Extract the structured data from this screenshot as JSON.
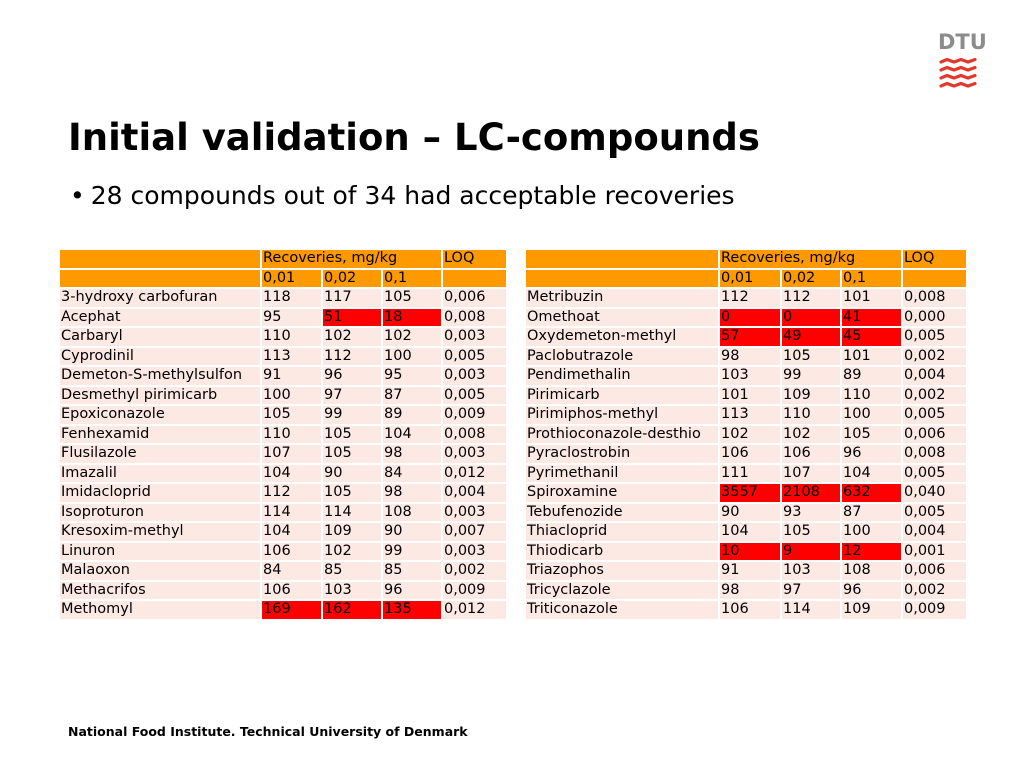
{
  "logo": {
    "text": "DTU",
    "color": "#8c8c8c",
    "mark_color": "#e03a2f"
  },
  "title": "Initial validation – LC-compounds",
  "bullet": {
    "symbol": "•",
    "text": "28 compounds out of 34 had acceptable recoveries"
  },
  "colors": {
    "header": "#ff9900",
    "row": "#fde9e4",
    "highlight": "#ff0000"
  },
  "tables": [
    {
      "header1": [
        "",
        "Recoveries, mg/kg",
        "LOQ"
      ],
      "header2": [
        "",
        "0,01",
        "0,02",
        "0,1",
        ""
      ],
      "rows": [
        {
          "name": "3-hydroxy carbofuran",
          "r1": "118",
          "r2": "117",
          "r3": "105",
          "loq": "0,006",
          "highlight": []
        },
        {
          "name": "Acephat",
          "r1": "95",
          "r2": "51",
          "r3": "18",
          "loq": "0,008",
          "highlight": [
            2,
            3
          ]
        },
        {
          "name": "Carbaryl",
          "r1": "110",
          "r2": "102",
          "r3": "102",
          "loq": "0,003",
          "highlight": []
        },
        {
          "name": "Cyprodinil",
          "r1": "113",
          "r2": "112",
          "r3": "100",
          "loq": "0,005",
          "highlight": []
        },
        {
          "name": "Demeton-S-methylsulfon",
          "r1": "91",
          "r2": "96",
          "r3": "95",
          "loq": "0,003",
          "highlight": []
        },
        {
          "name": "Desmethyl pirimicarb",
          "r1": "100",
          "r2": "97",
          "r3": "87",
          "loq": "0,005",
          "highlight": []
        },
        {
          "name": "Epoxiconazole",
          "r1": "105",
          "r2": "99",
          "r3": "89",
          "loq": "0,009",
          "highlight": []
        },
        {
          "name": "Fenhexamid",
          "r1": "110",
          "r2": "105",
          "r3": "104",
          "loq": "0,008",
          "highlight": []
        },
        {
          "name": "Flusilazole",
          "r1": "107",
          "r2": "105",
          "r3": "98",
          "loq": "0,003",
          "highlight": []
        },
        {
          "name": "Imazalil",
          "r1": "104",
          "r2": "90",
          "r3": "84",
          "loq": "0,012",
          "highlight": []
        },
        {
          "name": "Imidacloprid",
          "r1": "112",
          "r2": "105",
          "r3": "98",
          "loq": "0,004",
          "highlight": []
        },
        {
          "name": "Isoproturon",
          "r1": "114",
          "r2": "114",
          "r3": "108",
          "loq": "0,003",
          "highlight": []
        },
        {
          "name": "Kresoxim-methyl",
          "r1": "104",
          "r2": "109",
          "r3": "90",
          "loq": "0,007",
          "highlight": []
        },
        {
          "name": "Linuron",
          "r1": "106",
          "r2": "102",
          "r3": "99",
          "loq": "0,003",
          "highlight": []
        },
        {
          "name": "Malaoxon",
          "r1": "84",
          "r2": "85",
          "r3": "85",
          "loq": "0,002",
          "highlight": []
        },
        {
          "name": "Methacrifos",
          "r1": "106",
          "r2": "103",
          "r3": "96",
          "loq": "0,009",
          "highlight": []
        },
        {
          "name": "Methomyl",
          "r1": "169",
          "r2": "162",
          "r3": "135",
          "loq": "0,012",
          "highlight": [
            1,
            2,
            3
          ]
        }
      ]
    },
    {
      "header1": [
        "",
        "Recoveries, mg/kg",
        "LOQ"
      ],
      "header2": [
        "",
        "0,01",
        "0,02",
        "0,1",
        ""
      ],
      "rows": [
        {
          "name": "Metribuzin",
          "r1": "112",
          "r2": "112",
          "r3": "101",
          "loq": "0,008",
          "highlight": []
        },
        {
          "name": "Omethoat",
          "r1": "0",
          "r2": "0",
          "r3": "41",
          "loq": "0,000",
          "highlight": [
            1,
            2,
            3
          ]
        },
        {
          "name": "Oxydemeton-methyl",
          "r1": "57",
          "r2": "49",
          "r3": "45",
          "loq": "0,005",
          "highlight": [
            1,
            2,
            3
          ]
        },
        {
          "name": "Paclobutrazole",
          "r1": "98",
          "r2": "105",
          "r3": "101",
          "loq": "0,002",
          "highlight": []
        },
        {
          "name": "Pendimethalin",
          "r1": "103",
          "r2": "99",
          "r3": "89",
          "loq": "0,004",
          "highlight": []
        },
        {
          "name": "Pirimicarb",
          "r1": "101",
          "r2": "109",
          "r3": "110",
          "loq": "0,002",
          "highlight": []
        },
        {
          "name": "Pirimiphos-methyl",
          "r1": "113",
          "r2": "110",
          "r3": "100",
          "loq": "0,005",
          "highlight": []
        },
        {
          "name": "Prothioconazole-desthio",
          "r1": "102",
          "r2": "102",
          "r3": "105",
          "loq": "0,006",
          "highlight": []
        },
        {
          "name": "Pyraclostrobin",
          "r1": "106",
          "r2": "106",
          "r3": "96",
          "loq": "0,008",
          "highlight": []
        },
        {
          "name": "Pyrimethanil",
          "r1": "111",
          "r2": "107",
          "r3": "104",
          "loq": "0,005",
          "highlight": []
        },
        {
          "name": "Spiroxamine",
          "r1": "3557",
          "r2": "2108",
          "r3": "632",
          "loq": "0,040",
          "highlight": [
            1,
            2,
            3
          ]
        },
        {
          "name": "Tebufenozide",
          "r1": "90",
          "r2": "93",
          "r3": "87",
          "loq": "0,005",
          "highlight": []
        },
        {
          "name": "Thiacloprid",
          "r1": "104",
          "r2": "105",
          "r3": "100",
          "loq": "0,004",
          "highlight": []
        },
        {
          "name": "Thiodicarb",
          "r1": "10",
          "r2": "9",
          "r3": "12",
          "loq": "0,001",
          "highlight": [
            1,
            2,
            3
          ]
        },
        {
          "name": "Triazophos",
          "r1": "91",
          "r2": "103",
          "r3": "108",
          "loq": "0,006",
          "highlight": []
        },
        {
          "name": "Tricyclazole",
          "r1": "98",
          "r2": "97",
          "r3": "96",
          "loq": "0,002",
          "highlight": []
        },
        {
          "name": "Triticonazole",
          "r1": "106",
          "r2": "114",
          "r3": "109",
          "loq": "0,009",
          "highlight": []
        }
      ]
    }
  ],
  "footer": "National Food Institute. Technical University of Denmark"
}
